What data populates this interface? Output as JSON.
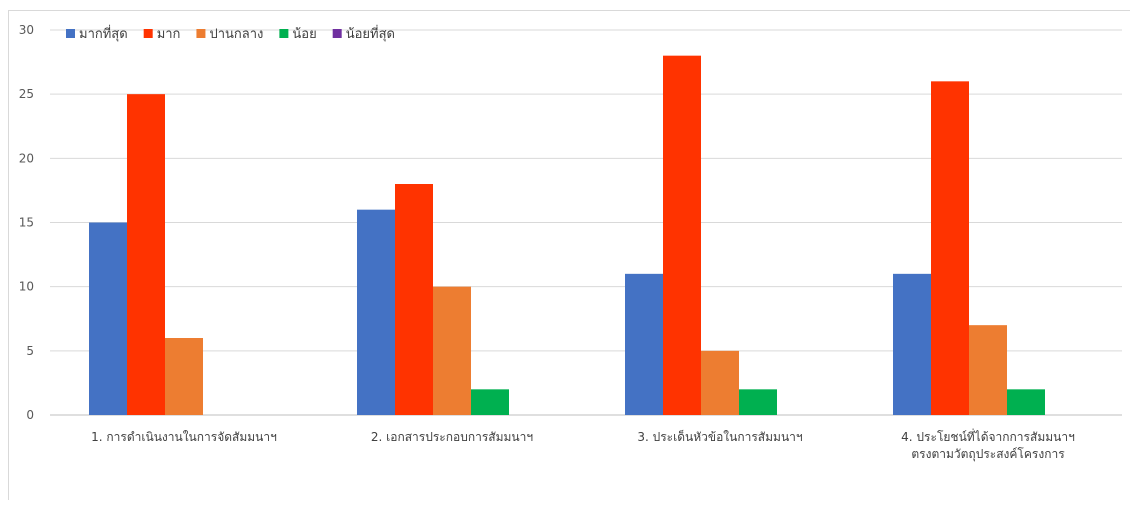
{
  "chart_data": {
    "type": "bar",
    "title": "",
    "xlabel": "",
    "ylabel": "",
    "ylim": [
      0,
      30
    ],
    "yticks": [
      0,
      5,
      10,
      15,
      20,
      25,
      30
    ],
    "grid": true,
    "legend_position": "top-left",
    "categories": [
      [
        "1. การดำเนินงานในการจัดสัมมนาฯ"
      ],
      [
        "2. เอกสารประกอบการสัมมนาฯ"
      ],
      [
        "3. ประเด็นหัวข้อในการสัมมนาฯ"
      ],
      [
        "4. ประโยชน์ที่ได้จากการสัมมนาฯ",
        "ตรงตามวัตถุประสงค์โครงการ"
      ]
    ],
    "series": [
      {
        "name": "มากที่สุด",
        "color": "#4472C4",
        "values": [
          15,
          16,
          11,
          11
        ]
      },
      {
        "name": "มาก",
        "color": "#FF3300",
        "values": [
          25,
          18,
          28,
          26
        ]
      },
      {
        "name": "ปานกลาง",
        "color": "#ED7D31",
        "values": [
          6,
          10,
          5,
          7
        ]
      },
      {
        "name": "น้อย",
        "color": "#00B050",
        "values": [
          0,
          2,
          2,
          2
        ]
      },
      {
        "name": "น้อยที่สุด",
        "color": "#7030A0",
        "values": [
          0,
          0,
          0,
          0
        ]
      }
    ]
  }
}
